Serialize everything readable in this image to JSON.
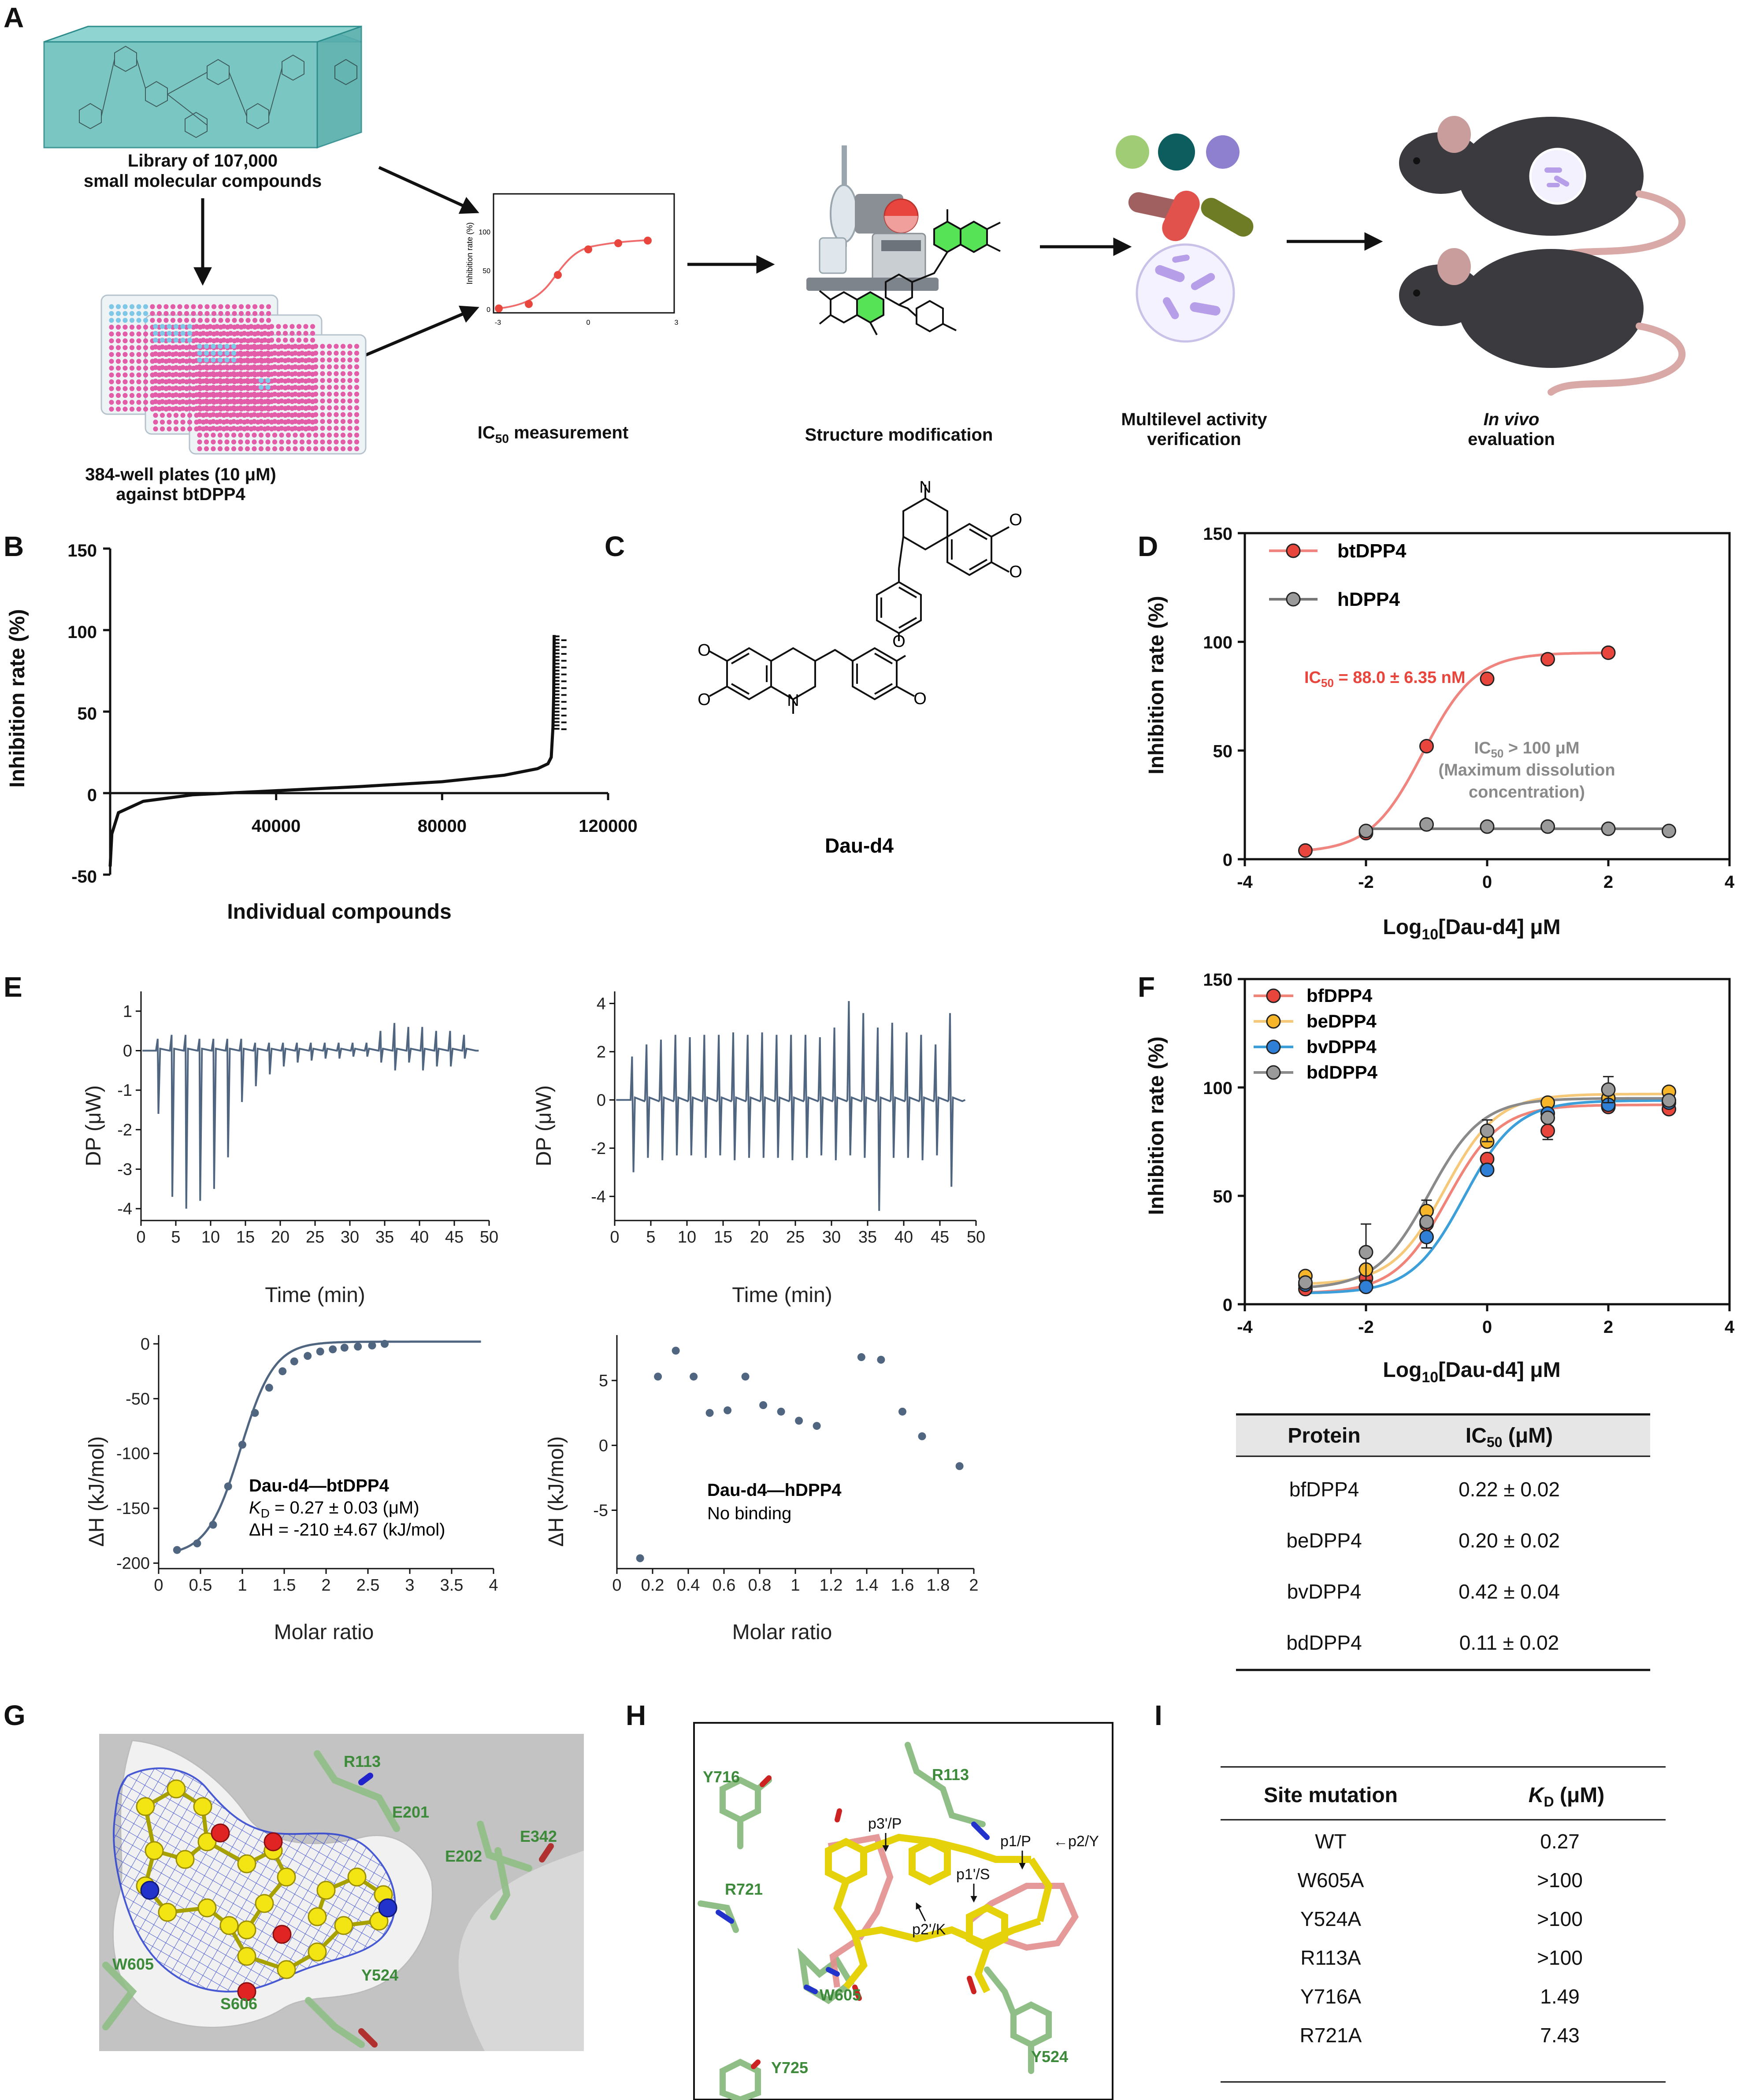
{
  "panels": {
    "A": "A",
    "B": "B",
    "C": "C",
    "D": "D",
    "E": "E",
    "F": "F",
    "G": "G",
    "H": "H",
    "I": "I"
  },
  "panelA": {
    "library_l1": "Library of 107,000",
    "library_l2": "small molecular compounds",
    "plates_l1": "384-well plates (10 μM)",
    "plates_l2": "against btDPP4",
    "ic50_pre": "IC",
    "ic50_sub": "50",
    "ic50_post": " measurement",
    "struct_mod": "Structure modification",
    "multi_l1": "Multilevel activity",
    "multi_l2": "verification",
    "invivo_l1": "In vivo",
    "invivo_l2": "evaluation",
    "mini_ylabel": "Inhibition rate (%)",
    "mini_yticks": [
      "0",
      "50",
      "100"
    ],
    "mini_xticks": [
      "-3",
      "0",
      "3"
    ]
  },
  "panelB": {
    "ylabel": "Inhibition rate (%)",
    "xlabel": "Individual compounds"
  },
  "panelC": {
    "compound": "Dau-d4",
    "atom_n": "N",
    "atom_o": "O"
  },
  "panelD": {
    "ylabel": "Inhibition rate (%)",
    "xlabel": "Log10[Dau-d4] μM",
    "xlabel_pre": "Log",
    "xlabel_sub": "10",
    "xlabel_post": "[Dau-d4] μM",
    "ic50_bt_pre": "IC",
    "ic50_bt_sub": "50",
    "ic50_bt_post": " = 88.0 ± 6.35 nM",
    "ic50_h_pre": "IC",
    "ic50_h_sub": "50",
    "ic50_h_post": " > 100 μM",
    "ic50_h_note1": "(Maximum dissolution",
    "ic50_h_note2": "concentration)"
  },
  "panelE": {
    "top_ylabel": "DP (μW)",
    "top_xlabel": "Time (min)",
    "bot_ylabel": "ΔH (kJ/mol)",
    "bot_xlabel": "Molar ratio",
    "bt_title": "Dau-d4—btDPP4",
    "bt_kd_pre": "K",
    "bt_kd_sub": "D",
    "bt_kd_post": " = 0.27 ± 0.03 (μM)",
    "bt_dh": "ΔH = -210 ±4.67 (kJ/mol)",
    "h_title": "Dau-d4—hDPP4",
    "h_note": "No binding"
  },
  "panelF": {
    "ylabel": "Inhibition rate (%)",
    "xlabel_pre": "Log",
    "xlabel_sub": "10",
    "xlabel_post": "[Dau-d4] μM",
    "table_header": [
      "Protein",
      "IC50 (μM)"
    ],
    "table_header_ic": "IC",
    "table_header_sub": "50",
    "table_header_post": " (μM)",
    "table_rows": [
      [
        "bfDPP4",
        "0.22 ± 0.02"
      ],
      [
        "beDPP4",
        "0.20 ± 0.02"
      ],
      [
        "bvDPP4",
        "0.42 ± 0.04"
      ],
      [
        "bdDPP4",
        "0.11 ± 0.02"
      ]
    ]
  },
  "panelG": {
    "residues": [
      "R113",
      "E201",
      "E342",
      "E202",
      "W605",
      "S606",
      "Y524"
    ]
  },
  "panelH": {
    "residues": [
      "Y716",
      "R113",
      "R721",
      "W605",
      "Y725",
      "Y524"
    ],
    "sites": [
      "p3'/P",
      "p1/P",
      "←p2/Y",
      "p1'/S",
      "p2'/K"
    ]
  },
  "panelI": {
    "header": [
      "Site mutation",
      "KD (μM)"
    ],
    "header_k": "K",
    "header_sub": "D",
    "header_post": " (μM)",
    "rows": [
      [
        "WT",
        "0.27"
      ],
      [
        "W605A",
        ">100"
      ],
      [
        "Y524A",
        ">100"
      ],
      [
        "R113A",
        ">100"
      ],
      [
        "Y716A",
        "1.49"
      ],
      [
        "R721A",
        "7.43"
      ]
    ]
  },
  "chart_data": [
    {
      "id": "B",
      "type": "scatter",
      "title": "",
      "xlabel": "Individual compounds",
      "ylabel": "Inhibition rate (%)",
      "xlim": [
        0,
        120000
      ],
      "ylim": [
        -50,
        150
      ],
      "xticks": [
        40000,
        80000,
        120000
      ],
      "yticks": [
        -50,
        0,
        50,
        100,
        150
      ],
      "description_points": [
        [
          0,
          -45
        ],
        [
          400,
          -25
        ],
        [
          2000,
          -12
        ],
        [
          8000,
          -5
        ],
        [
          20000,
          -1
        ],
        [
          40000,
          1.5
        ],
        [
          60000,
          4
        ],
        [
          80000,
          7
        ],
        [
          95000,
          11
        ],
        [
          103000,
          15
        ],
        [
          105500,
          18
        ],
        [
          106300,
          22
        ],
        [
          106700,
          40
        ],
        [
          106900,
          60
        ],
        [
          107000,
          97
        ]
      ]
    },
    {
      "id": "D",
      "type": "line",
      "xlabel": "Log10[Dau-d4] μM",
      "ylabel": "Inhibition rate (%)",
      "xlim": [
        -4,
        4
      ],
      "ylim": [
        0,
        150
      ],
      "xticks": [
        -4,
        -2,
        0,
        2,
        4
      ],
      "yticks": [
        0,
        50,
        100,
        150
      ],
      "series": [
        {
          "name": "btDPP4",
          "color": "#e8453c",
          "line": "#f0857f",
          "x": [
            -3,
            -2,
            -1,
            0,
            1,
            2
          ],
          "y": [
            4,
            12,
            52,
            83,
            92,
            95
          ],
          "fit": {
            "bottom": 3,
            "top": 95,
            "logIC50": -1.06,
            "hill": 1.0
          }
        },
        {
          "name": "hDPP4",
          "color": "#9a9a9a",
          "line": "#777777",
          "x": [
            -2,
            -1,
            0,
            1,
            2,
            3
          ],
          "y": [
            13,
            16,
            15,
            15,
            14,
            13
          ],
          "fit_flat": 14
        }
      ]
    },
    {
      "id": "E-top-left",
      "type": "line",
      "xlabel": "Time (min)",
      "ylabel": "DP (μW)",
      "xlim": [
        0,
        50
      ],
      "ylim": [
        -4.3,
        1.5
      ],
      "xticks": [
        0,
        5,
        10,
        15,
        20,
        25,
        30,
        35,
        40,
        45,
        50
      ],
      "yticks": [
        -4,
        -3,
        -2,
        -1,
        0,
        1
      ],
      "series": [
        {
          "name": "btDPP4 ITC thermogram",
          "peak_times": [
            2.5,
            4.5,
            6.5,
            8.5,
            10.5,
            12.5,
            14.5,
            16.5,
            18.5,
            20.5,
            22.5,
            24.5,
            26.5,
            28.5,
            30.5,
            32.5,
            34.5,
            36.5,
            38.5,
            40.5,
            42.5,
            44.5,
            46.5
          ],
          "peak_depths": [
            -1.6,
            -3.7,
            -4.0,
            -3.8,
            -3.5,
            -2.7,
            -1.3,
            -0.9,
            -0.6,
            -0.4,
            -0.3,
            -0.25,
            -0.2,
            -0.2,
            -0.15,
            -0.15,
            -0.3,
            -0.5,
            -0.3,
            -0.5,
            -0.4,
            -0.4,
            -0.2
          ],
          "peak_up": [
            0.3,
            0.4,
            0.4,
            0.3,
            0.3,
            0.3,
            0.3,
            0.2,
            0.2,
            0.2,
            0.2,
            0.2,
            0.2,
            0.2,
            0.2,
            0.2,
            0.5,
            0.7,
            0.6,
            0.6,
            0.5,
            0.5,
            0.4
          ]
        }
      ]
    },
    {
      "id": "E-top-right",
      "type": "line",
      "xlabel": "Time (min)",
      "ylabel": "DP (μW)",
      "xlim": [
        0,
        50
      ],
      "ylim": [
        -5,
        4.5
      ],
      "xticks": [
        0,
        5,
        10,
        15,
        20,
        25,
        30,
        35,
        40,
        45,
        50
      ],
      "yticks": [
        -4,
        -2,
        0,
        2,
        4
      ],
      "series": [
        {
          "name": "hDPP4 ITC thermogram",
          "peak_times": [
            2.5,
            4.5,
            6.5,
            8.5,
            10.5,
            12.5,
            14.5,
            16.5,
            18.5,
            20.5,
            22.5,
            24.5,
            26.5,
            28.5,
            30.5,
            32.5,
            34.5,
            36.5,
            38.5,
            40.5,
            42.5,
            44.5,
            46.5
          ],
          "peak_up": [
            1.8,
            2.3,
            2.5,
            2.7,
            2.6,
            2.7,
            2.7,
            2.8,
            2.7,
            2.8,
            2.7,
            2.7,
            2.7,
            2.6,
            3.0,
            4.1,
            3.6,
            3.0,
            3.2,
            2.8,
            2.7,
            2.3,
            3.6
          ],
          "peak_depths": [
            -3.0,
            -2.4,
            -2.5,
            -2.3,
            -2.3,
            -2.4,
            -2.3,
            -2.5,
            -2.4,
            -2.4,
            -2.4,
            -2.5,
            -2.4,
            -2.3,
            -2.5,
            -2.3,
            -2.4,
            -4.6,
            -2.4,
            -2.4,
            -2.5,
            -2.3,
            -3.6
          ]
        }
      ]
    },
    {
      "id": "E-bottom-left",
      "type": "scatter",
      "xlabel": "Molar ratio",
      "ylabel": "ΔH (kJ/mol)",
      "xlim": [
        0,
        4
      ],
      "ylim": [
        -205,
        8
      ],
      "xticks": [
        0,
        0.5,
        1,
        1.5,
        2,
        2.5,
        3,
        3.5,
        4
      ],
      "yticks": [
        -200,
        -150,
        -100,
        -50,
        0
      ],
      "series": [
        {
          "name": "Dau-d4—btDPP4",
          "x": [
            0.22,
            0.46,
            0.65,
            0.83,
            1.0,
            1.15,
            1.32,
            1.48,
            1.62,
            1.78,
            1.93,
            2.08,
            2.22,
            2.38,
            2.55,
            2.7
          ],
          "y": [
            -188,
            -182,
            -165,
            -130,
            -92,
            -63,
            -40,
            -25,
            -16,
            -11,
            -7,
            -5,
            -3.5,
            -2.5,
            -1.5,
            0
          ],
          "fit": {
            "n": 0.98,
            "dH": -210,
            "scale": 0.2
          }
        }
      ]
    },
    {
      "id": "E-bottom-right",
      "type": "scatter",
      "xlabel": "Molar ratio",
      "ylabel": "ΔH (kJ/mol)",
      "xlim": [
        0,
        2
      ],
      "ylim": [
        -9.5,
        8.5
      ],
      "xticks": [
        0,
        0.2,
        0.4,
        0.6,
        0.8,
        1,
        1.2,
        1.4,
        1.6,
        1.8,
        2
      ],
      "yticks": [
        -5,
        0,
        5
      ],
      "series": [
        {
          "name": "Dau-d4—hDPP4",
          "x": [
            0.13,
            0.23,
            0.33,
            0.43,
            0.52,
            0.62,
            0.72,
            0.82,
            0.92,
            1.02,
            1.12,
            1.37,
            1.48,
            1.6,
            1.71,
            1.92
          ],
          "y": [
            -8.7,
            5.3,
            7.3,
            5.3,
            2.5,
            2.7,
            5.3,
            3.1,
            2.6,
            1.9,
            1.5,
            6.8,
            6.6,
            2.6,
            0.7,
            -1.6
          ]
        }
      ]
    },
    {
      "id": "F",
      "type": "line",
      "xlabel": "Log10[Dau-d4] μM",
      "ylabel": "Inhibition rate (%)",
      "xlim": [
        -4,
        4
      ],
      "ylim": [
        0,
        150
      ],
      "xticks": [
        -4,
        -2,
        0,
        2,
        4
      ],
      "yticks": [
        0,
        50,
        100,
        150
      ],
      "x": [
        -3,
        -2,
        -1,
        0,
        1,
        2,
        3
      ],
      "series": [
        {
          "name": "bfDPP4",
          "color": "#e8453c",
          "line": "#f08478",
          "y": [
            7,
            12,
            37,
            67,
            80,
            91,
            90
          ],
          "err": [
            0,
            0,
            0,
            0,
            4,
            0,
            0
          ],
          "fit": {
            "bottom": 5,
            "top": 92,
            "logIC50": -0.66,
            "hill": 1.0
          }
        },
        {
          "name": "beDPP4",
          "color": "#f7b52a",
          "line": "#f5c979",
          "y": [
            13,
            16,
            43,
            75,
            93,
            95,
            98
          ],
          "err": [
            0,
            0,
            5,
            0,
            0,
            0,
            0
          ],
          "fit": {
            "bottom": 9,
            "top": 97,
            "logIC50": -0.7,
            "hill": 1.0
          }
        },
        {
          "name": "bvDPP4",
          "color": "#2f7fd6",
          "line": "#3d9fd9",
          "y": [
            9,
            8,
            31,
            62,
            88,
            92,
            93
          ],
          "err": [
            0,
            0,
            5,
            0,
            0,
            0,
            0
          ],
          "fit": {
            "bottom": 5,
            "top": 94,
            "logIC50": -0.38,
            "hill": 1.0
          }
        },
        {
          "name": "bdDPP4",
          "color": "#9a9a9a",
          "line": "#8a8a8a",
          "y": [
            10,
            24,
            38,
            80,
            86,
            99,
            94
          ],
          "err": [
            0,
            13,
            0,
            5,
            0,
            6,
            0
          ],
          "fit": {
            "bottom": 7,
            "top": 95,
            "logIC50": -0.96,
            "hill": 1.0
          }
        }
      ]
    }
  ]
}
